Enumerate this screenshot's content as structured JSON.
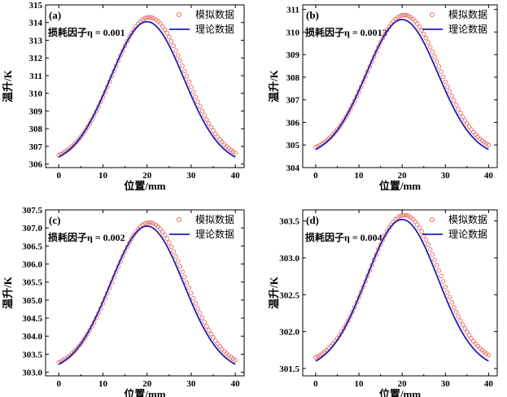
{
  "chart_data": [
    {
      "type": "scatter+line",
      "panel_label": "(a)",
      "annotation": "损耗因子η = 0.001",
      "xlabel": "位置/mm",
      "ylabel": "温升/K",
      "xlim": [
        -3,
        42
      ],
      "ylim": [
        305.8,
        315
      ],
      "xticks": [
        0,
        10,
        20,
        30,
        40
      ],
      "yticks": [
        306,
        307,
        308,
        309,
        310,
        311,
        312,
        313,
        314,
        315
      ],
      "legend": {
        "position": "top-right",
        "entries": [
          "模拟数据",
          "理论数据"
        ]
      },
      "series": [
        {
          "name": "模拟数据",
          "kind": "scatter",
          "color": "#e8685f",
          "x_start": 0,
          "x_end": 40,
          "x_step": 0.5,
          "base": 306.5,
          "peak": 314.3,
          "peak_x": 20.5
        },
        {
          "name": "理论数据",
          "kind": "line",
          "color": "#1f1fb4",
          "x_start": 0,
          "x_end": 40,
          "base": 306.4,
          "peak": 314.05,
          "peak_x": 20
        }
      ]
    },
    {
      "type": "scatter+line",
      "panel_label": "(b)",
      "annotation": "损耗因子η = 0.0013",
      "xlabel": "位置/mm",
      "ylabel": "温升/K",
      "xlim": [
        -3,
        42
      ],
      "ylim": [
        304,
        311.2
      ],
      "xticks": [
        0,
        10,
        20,
        30,
        40
      ],
      "yticks": [
        304,
        305,
        306,
        307,
        308,
        309,
        310,
        311
      ],
      "legend": {
        "position": "top-right",
        "entries": [
          "模拟数据",
          "理论数据"
        ]
      },
      "series": [
        {
          "name": "模拟数据",
          "kind": "scatter",
          "color": "#e8685f",
          "x_start": 0,
          "x_end": 40,
          "x_step": 0.5,
          "base": 304.9,
          "peak": 310.75,
          "peak_x": 20.5
        },
        {
          "name": "理论数据",
          "kind": "line",
          "color": "#1f1fb4",
          "x_start": 0,
          "x_end": 40,
          "base": 304.8,
          "peak": 310.55,
          "peak_x": 20
        }
      ]
    },
    {
      "type": "scatter+line",
      "panel_label": "(c)",
      "annotation": "损耗因子η = 0.002",
      "xlabel": "位置/mm",
      "ylabel": "温升/K",
      "xlim": [
        -3,
        42
      ],
      "ylim": [
        302.9,
        307.5
      ],
      "xticks": [
        0,
        10,
        20,
        30,
        40
      ],
      "yticks": [
        303.0,
        303.5,
        304.0,
        304.5,
        305.0,
        305.5,
        306.0,
        306.5,
        307.0,
        307.5
      ],
      "legend": {
        "position": "top-right",
        "entries": [
          "模拟数据",
          "理论数据"
        ]
      },
      "series": [
        {
          "name": "模拟数据",
          "kind": "scatter",
          "color": "#e8685f",
          "x_start": 0,
          "x_end": 40,
          "x_step": 0.5,
          "base": 303.27,
          "peak": 307.15,
          "peak_x": 20.5
        },
        {
          "name": "理论数据",
          "kind": "line",
          "color": "#1f1fb4",
          "x_start": 0,
          "x_end": 40,
          "base": 303.22,
          "peak": 307.05,
          "peak_x": 20
        }
      ]
    },
    {
      "type": "scatter+line",
      "panel_label": "(d)",
      "annotation": "损耗因子η = 0.004",
      "xlabel": "位置/mm",
      "ylabel": "温升/K",
      "xlim": [
        -3,
        42
      ],
      "ylim": [
        301.4,
        303.65
      ],
      "xticks": [
        0,
        10,
        20,
        30,
        40
      ],
      "yticks": [
        301.5,
        302.0,
        302.5,
        303.0,
        303.5
      ],
      "legend": {
        "position": "top-right",
        "entries": [
          "模拟数据",
          "理论数据"
        ]
      },
      "series": [
        {
          "name": "模拟数据",
          "kind": "scatter",
          "color": "#e8685f",
          "x_start": 0,
          "x_end": 40,
          "x_step": 0.5,
          "base": 301.65,
          "peak": 303.58,
          "peak_x": 20.5
        },
        {
          "name": "理论数据",
          "kind": "line",
          "color": "#1f1fb4",
          "x_start": 0,
          "x_end": 40,
          "base": 301.6,
          "peak": 303.52,
          "peak_x": 20
        }
      ]
    }
  ]
}
